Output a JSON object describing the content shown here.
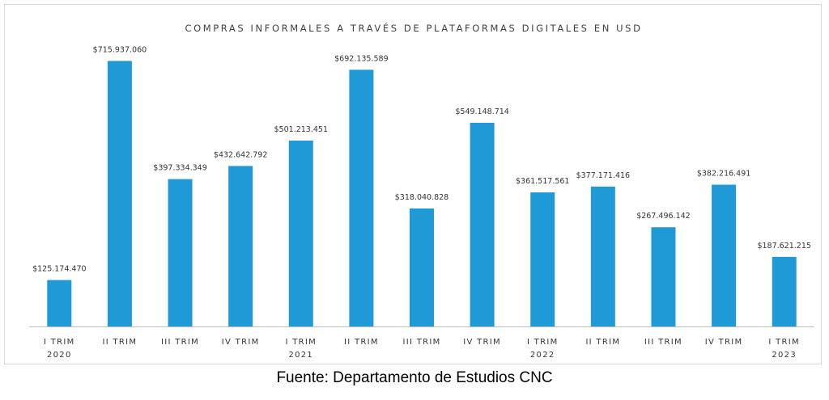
{
  "caption": "Fuente: Departamento de Estudios CNC",
  "colors": {
    "bar": "#1f9ad6",
    "axis": "#bfbfbf",
    "label": "#333333"
  },
  "chart_data": {
    "type": "bar",
    "title": "COMPRAS INFORMALES A TRAVÉS DE PLATAFORMAS DIGITALES EN USD",
    "xlabel": "",
    "ylabel": "",
    "ylim": [
      0,
      780000000
    ],
    "grid": false,
    "legend": "none",
    "categories": [
      {
        "label": "I TRIM",
        "year": "2020"
      },
      {
        "label": "II TRIM",
        "year": ""
      },
      {
        "label": "III TRIM",
        "year": ""
      },
      {
        "label": "IV TRIM",
        "year": ""
      },
      {
        "label": "I TRIM",
        "year": "2021"
      },
      {
        "label": "II TRIM",
        "year": ""
      },
      {
        "label": "III TRIM",
        "year": ""
      },
      {
        "label": "IV TRIM",
        "year": ""
      },
      {
        "label": "I TRIM",
        "year": "2022"
      },
      {
        "label": "II TRIM",
        "year": ""
      },
      {
        "label": "III TRIM",
        "year": ""
      },
      {
        "label": "IV TRIM",
        "year": ""
      },
      {
        "label": "I TRIM",
        "year": "2023"
      }
    ],
    "values": [
      125174470,
      715937060,
      397334349,
      432642792,
      501213451,
      692135589,
      318040828,
      549148714,
      361517561,
      377171416,
      267496142,
      382216491,
      187621215
    ],
    "data_labels": [
      "$125.174.470",
      "$715.937.060",
      "$397.334.349",
      "$432.642.792",
      "$501.213.451",
      "$692.135.589",
      "$318.040.828",
      "$549.148.714",
      "$361.517.561",
      "$377.171.416",
      "$267.496.142",
      "$382.216.491",
      "$187.621.215"
    ]
  }
}
